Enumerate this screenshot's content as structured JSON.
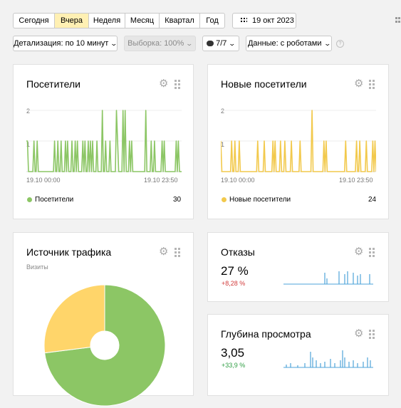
{
  "toolbar": {
    "periods": [
      "Сегодня",
      "Вчера",
      "Неделя",
      "Месяц",
      "Квартал",
      "Год"
    ],
    "active_period": "Вчера",
    "date": "19 окт 2023",
    "detail_label": "Детализация: по 10 минут",
    "sample_label": "Выборка: 100%",
    "segments_label": "7/7",
    "data_label": "Данные: с роботами",
    "help_icon": "question-circle-icon"
  },
  "widgets": {
    "visitors": {
      "title": "Посетители",
      "legend": "Посетители",
      "total": "30",
      "color": "#8cc665",
      "y_ticks": [
        "2",
        "1"
      ],
      "x_start": "19.10 00:00",
      "x_end": "19.10 23:50"
    },
    "new_visitors": {
      "title": "Новые посетители",
      "legend": "Новые посетители",
      "total": "24",
      "color": "#f2c94c",
      "y_ticks": [
        "2",
        "1"
      ],
      "x_start": "19.10 00:00",
      "x_end": "19.10 23:50"
    },
    "traffic": {
      "title": "Источник трафика",
      "subtitle": "Визиты"
    },
    "bounce": {
      "title": "Отказы",
      "value": "27 %",
      "delta": "+8,28 %",
      "delta_color": "#d23b3b"
    },
    "depth": {
      "title": "Глубина просмотра",
      "value": "3,05",
      "delta": "+33,9 %",
      "delta_color": "#2f9e44"
    }
  },
  "chart_data": [
    {
      "type": "line",
      "series": [
        {
          "name": "Посетители",
          "values": [
            1,
            1,
            0,
            0,
            0,
            0,
            0,
            1,
            0,
            0,
            1,
            0,
            0,
            0,
            0,
            0,
            0,
            0,
            0,
            0,
            0,
            0,
            0,
            0,
            0,
            0,
            1,
            0,
            0,
            1,
            0,
            0,
            1,
            0,
            0,
            0,
            1,
            0,
            1,
            0,
            0,
            0,
            1,
            0,
            0,
            1,
            0,
            1,
            0,
            0,
            0,
            0,
            1,
            0,
            1,
            0,
            0,
            1,
            0,
            1,
            0,
            1,
            0,
            0,
            0,
            1,
            0,
            0,
            0,
            0,
            2,
            0,
            0,
            1,
            0,
            0,
            0,
            1,
            0,
            0,
            0,
            0,
            0,
            2,
            1,
            0,
            0,
            0,
            0,
            2,
            0,
            2,
            0,
            0,
            0,
            1,
            0,
            1,
            0,
            0,
            0,
            0,
            0,
            0,
            0,
            0,
            0,
            0,
            0,
            0,
            2,
            0,
            0,
            0,
            0,
            1,
            0,
            0,
            1,
            0,
            0,
            0,
            0,
            0,
            0,
            1,
            0,
            1,
            0,
            0,
            0,
            0,
            0,
            0,
            0,
            0,
            0,
            0,
            1,
            0,
            1,
            0,
            0,
            0
          ]
        }
      ],
      "x_labels": [
        "19.10 00:00",
        "19.10 23:50"
      ],
      "ylim": [
        0,
        2
      ]
    },
    {
      "type": "line",
      "series": [
        {
          "name": "Новые посетители",
          "values": [
            1,
            0,
            0,
            0,
            0,
            0,
            0,
            0,
            0,
            0,
            1,
            0,
            0,
            1,
            0,
            0,
            0,
            1,
            0,
            0,
            0,
            0,
            0,
            0,
            0,
            0,
            0,
            0,
            0,
            0,
            0,
            0,
            0,
            0,
            1,
            0,
            0,
            0,
            0,
            0,
            1,
            0,
            0,
            0,
            0,
            0,
            0,
            0,
            1,
            0,
            1,
            0,
            0,
            0,
            0,
            1,
            0,
            0,
            0,
            1,
            0,
            0,
            0,
            0,
            0,
            1,
            0,
            0,
            0,
            0,
            0,
            0,
            0,
            1,
            0,
            0,
            0,
            0,
            0,
            0,
            0,
            0,
            0,
            0,
            2,
            0,
            0,
            0,
            0,
            0,
            0,
            0,
            0,
            0,
            0,
            1,
            0,
            1,
            0,
            0,
            0,
            0,
            0,
            0,
            0,
            0,
            0,
            0,
            0,
            0,
            0,
            0,
            0,
            0,
            0,
            1,
            0,
            0,
            0,
            0,
            0,
            0,
            0,
            0,
            0,
            1,
            0,
            0,
            1,
            0,
            0,
            0,
            0,
            0,
            1,
            0,
            0,
            0,
            0,
            0,
            1,
            0,
            1,
            0
          ]
        }
      ],
      "x_labels": [
        "19.10 00:00",
        "19.10 23:50"
      ],
      "ylim": [
        0,
        2
      ]
    },
    {
      "type": "pie",
      "values": [
        73,
        27
      ],
      "colors": [
        "#8cc665",
        "#ffd56a"
      ]
    }
  ]
}
